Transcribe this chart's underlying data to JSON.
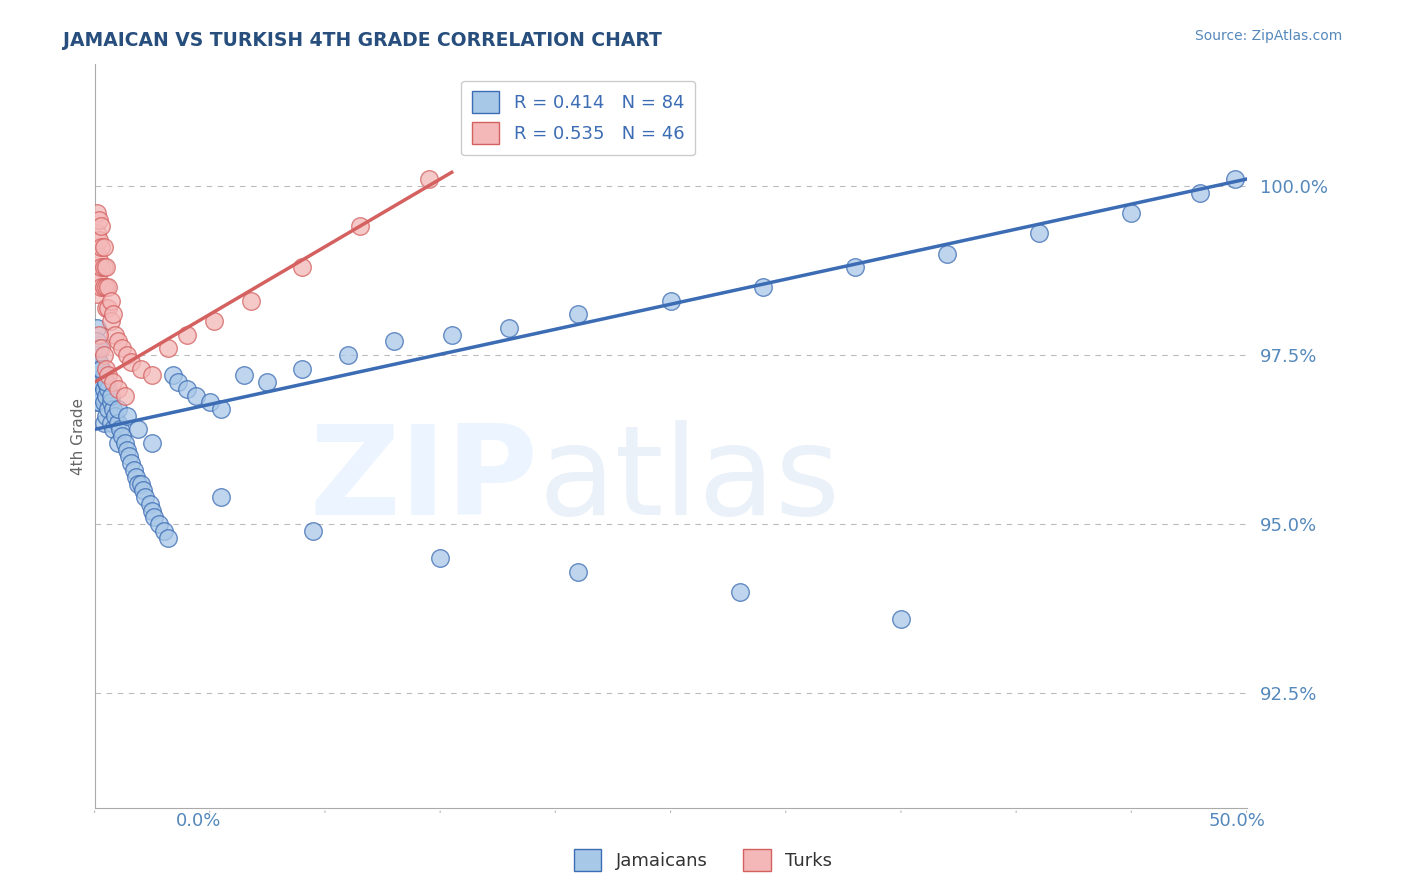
{
  "title": "JAMAICAN VS TURKISH 4TH GRADE CORRELATION CHART",
  "source_text": "Source: ZipAtlas.com",
  "ylabel": "4th Grade",
  "xmin": 0.0,
  "xmax": 0.5,
  "ymin": 0.908,
  "ymax": 1.018,
  "yticks": [
    0.925,
    0.95,
    0.975,
    1.0
  ],
  "ytick_labels": [
    "92.5%",
    "95.0%",
    "97.5%",
    "100.0%"
  ],
  "blue_R": 0.414,
  "blue_N": 84,
  "pink_R": 0.535,
  "pink_N": 46,
  "blue_color": "#a8c8e8",
  "pink_color": "#f4b8b8",
  "blue_line_color": "#3c6cb4",
  "pink_line_color": "#d46060",
  "background_color": "#ffffff",
  "title_color": "#274e7c",
  "axis_label_color": "#5588bb",
  "blue_line_x0": 0.0,
  "blue_line_x1": 0.5,
  "blue_line_y0": 0.964,
  "blue_line_y1": 1.001,
  "pink_line_x0": 0.0,
  "pink_line_x1": 0.155,
  "pink_line_y0": 0.971,
  "pink_line_y1": 1.002,
  "blue_scatter_x": [
    0.001,
    0.001,
    0.001,
    0.001,
    0.001,
    0.001,
    0.001,
    0.002,
    0.002,
    0.002,
    0.002,
    0.002,
    0.003,
    0.003,
    0.003,
    0.004,
    0.004,
    0.004,
    0.004,
    0.005,
    0.005,
    0.005,
    0.006,
    0.006,
    0.007,
    0.007,
    0.008,
    0.008,
    0.009,
    0.01,
    0.01,
    0.011,
    0.012,
    0.013,
    0.014,
    0.015,
    0.016,
    0.017,
    0.018,
    0.019,
    0.02,
    0.021,
    0.022,
    0.024,
    0.025,
    0.026,
    0.028,
    0.03,
    0.032,
    0.034,
    0.036,
    0.04,
    0.044,
    0.05,
    0.055,
    0.065,
    0.075,
    0.09,
    0.11,
    0.13,
    0.155,
    0.18,
    0.21,
    0.25,
    0.29,
    0.33,
    0.37,
    0.41,
    0.45,
    0.48,
    0.495,
    0.003,
    0.005,
    0.007,
    0.01,
    0.014,
    0.019,
    0.025,
    0.055,
    0.095,
    0.15,
    0.21,
    0.28,
    0.35
  ],
  "blue_scatter_y": [
    0.979,
    0.977,
    0.975,
    0.973,
    0.971,
    0.97,
    0.968,
    0.976,
    0.974,
    0.972,
    0.97,
    0.968,
    0.973,
    0.971,
    0.969,
    0.972,
    0.97,
    0.968,
    0.965,
    0.971,
    0.969,
    0.966,
    0.97,
    0.967,
    0.968,
    0.965,
    0.967,
    0.964,
    0.966,
    0.965,
    0.962,
    0.964,
    0.963,
    0.962,
    0.961,
    0.96,
    0.959,
    0.958,
    0.957,
    0.956,
    0.956,
    0.955,
    0.954,
    0.953,
    0.952,
    0.951,
    0.95,
    0.949,
    0.948,
    0.972,
    0.971,
    0.97,
    0.969,
    0.968,
    0.967,
    0.972,
    0.971,
    0.973,
    0.975,
    0.977,
    0.978,
    0.979,
    0.981,
    0.983,
    0.985,
    0.988,
    0.99,
    0.993,
    0.996,
    0.999,
    1.001,
    0.973,
    0.971,
    0.969,
    0.967,
    0.966,
    0.964,
    0.962,
    0.954,
    0.949,
    0.945,
    0.943,
    0.94,
    0.936
  ],
  "pink_scatter_x": [
    0.001,
    0.001,
    0.001,
    0.001,
    0.001,
    0.002,
    0.002,
    0.002,
    0.002,
    0.003,
    0.003,
    0.003,
    0.003,
    0.004,
    0.004,
    0.004,
    0.005,
    0.005,
    0.005,
    0.006,
    0.006,
    0.007,
    0.007,
    0.008,
    0.009,
    0.01,
    0.012,
    0.014,
    0.016,
    0.02,
    0.025,
    0.032,
    0.04,
    0.052,
    0.068,
    0.09,
    0.115,
    0.145,
    0.002,
    0.003,
    0.004,
    0.005,
    0.006,
    0.008,
    0.01,
    0.013
  ],
  "pink_scatter_y": [
    0.996,
    0.993,
    0.99,
    0.987,
    0.984,
    0.995,
    0.992,
    0.989,
    0.986,
    0.994,
    0.991,
    0.988,
    0.985,
    0.991,
    0.988,
    0.985,
    0.988,
    0.985,
    0.982,
    0.985,
    0.982,
    0.983,
    0.98,
    0.981,
    0.978,
    0.977,
    0.976,
    0.975,
    0.974,
    0.973,
    0.972,
    0.976,
    0.978,
    0.98,
    0.983,
    0.988,
    0.994,
    1.001,
    0.978,
    0.976,
    0.975,
    0.973,
    0.972,
    0.971,
    0.97,
    0.969
  ]
}
